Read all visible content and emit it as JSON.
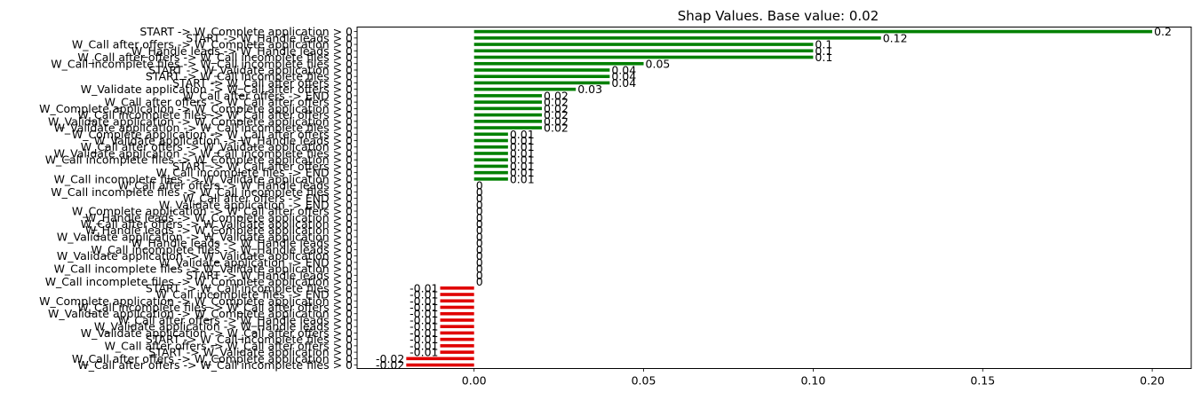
{
  "chart_data": {
    "type": "bar",
    "orientation": "horizontal",
    "title": "Shap Values. Base value: 0.02",
    "xlabel": "",
    "ylabel": "",
    "xlim": [
      -0.0345,
      0.2115
    ],
    "xticks": [
      "0.00",
      "0.05",
      "0.10",
      "0.15",
      "0.20"
    ],
    "xtick_values": [
      0,
      0.05,
      0.1,
      0.15,
      0.2
    ],
    "grid": false,
    "colors": {
      "positive": "#008000",
      "negative": "#e00000",
      "axis": "#000000"
    },
    "categories": [
      "START -> W_Complete application > 0",
      "START -> W_Handle leads > 0",
      "W_Call after offers -> W_Complete application > 0",
      "W_Handle leads -> W_Handle leads > 0",
      "W_Call after offers -> W_Call incomplete files > 0",
      "W_Call incomplete files -> W_Call incomplete files > 0",
      "START -> W_Validate application > 0",
      "START -> W_Call incomplete files > 0",
      "START -> W_Call after offers > 0",
      "W_Validate application -> W_Call after offers > 0",
      "W_Call after offers -> END > 0",
      "W_Call after offers -> W_Call after offers > 0",
      "W_Complete application -> W_Complete application > 0",
      "W_Call incomplete files -> W_Call after offers > 0",
      "W_Validate application -> W_Complete application > 0",
      "W_Validate application -> W_Call incomplete files > 0",
      "W_Complete application -> W_Call after offers > 0",
      "W_Validate application -> W_Handle leads > 0",
      "W_Call after offers -> W_Validate application > 0",
      "W_Validate application -> W_Call incomplete files > 0",
      "W_Call incomplete files -> W_Complete application > 0",
      "START -> W_Call after offers > 0",
      "W_Call incomplete files -> END > 0",
      "W_Call incomplete files -> W_Validate application > 0",
      "W_Call after offers -> W_Handle leads > 0",
      "W_Call incomplete files -> W_Call incomplete files > 0",
      "W_Call after offers -> END > 0",
      "W_Validate application -> END > 0",
      "W_Complete application -> W_Call after offers > 0",
      "W_Handle leads -> W_Complete application > 0",
      "W_Call after offers -> W_Validate application > 0",
      "W_Handle leads -> W_Complete application > 0",
      "W_Validate application -> W_Validate application > 0",
      "W_Handle leads -> W_Handle leads > 0",
      "W_Call incomplete files -> W_Handle leads > 0",
      "W_Validate application -> W_Validate application > 0",
      "W_Validate application -> END > 0",
      "W_Call incomplete files -> W_Validate application > 0",
      "START -> W_Handle leads > 0",
      "W_Call incomplete files -> W_Complete application > 0",
      "START -> W_Call incomplete files > 0",
      "W_Call incomplete files -> END > 0",
      "W_Complete application -> W_Complete application > 0",
      "W_Call incomplete files -> W_Call after offers > 0",
      "W_Validate application -> W_Complete application > 0",
      "W_Call after offers -> W_Handle leads > 0",
      "W_Validate application -> W_Handle leads > 0",
      "W_Validate application -> W_Call after offers > 0",
      "START -> W_Call incomplete files > 0",
      "W_Call after offers -> W_Call after offers > 0",
      "START -> W_Validate application > 0",
      "W_Call after offers -> W_Complete application > 0",
      "W_Call after offers -> W_Call incomplete files > 0"
    ],
    "values": [
      0.2,
      0.12,
      0.1,
      0.1,
      0.1,
      0.05,
      0.04,
      0.04,
      0.04,
      0.03,
      0.02,
      0.02,
      0.02,
      0.02,
      0.02,
      0.02,
      0.01,
      0.01,
      0.01,
      0.01,
      0.01,
      0.01,
      0.01,
      0.01,
      0,
      0,
      0,
      0,
      0,
      0,
      0,
      0,
      0,
      0,
      0,
      0,
      0,
      0,
      0,
      0,
      -0.01,
      -0.01,
      -0.01,
      -0.01,
      -0.01,
      -0.01,
      -0.01,
      -0.01,
      -0.01,
      -0.01,
      -0.01,
      -0.02,
      -0.02
    ],
    "value_labels": [
      "0.2",
      "0.12",
      "0.1",
      "0.1",
      "0.1",
      "0.05",
      "0.04",
      "0.04",
      "0.04",
      "0.03",
      "0.02",
      "0.02",
      "0.02",
      "0.02",
      "0.02",
      "0.02",
      "0.01",
      "0.01",
      "0.01",
      "0.01",
      "0.01",
      "0.01",
      "0.01",
      "0.01",
      "0",
      "0",
      "0",
      "0",
      "0",
      "0",
      "0",
      "0",
      "0",
      "0",
      "0",
      "0",
      "0",
      "0",
      "0",
      "0",
      "-0.01",
      "-0.01",
      "-0.01",
      "-0.01",
      "-0.01",
      "-0.01",
      "-0.01",
      "-0.01",
      "-0.01",
      "-0.01",
      "-0.01",
      "-0.02",
      "-0.02"
    ]
  }
}
